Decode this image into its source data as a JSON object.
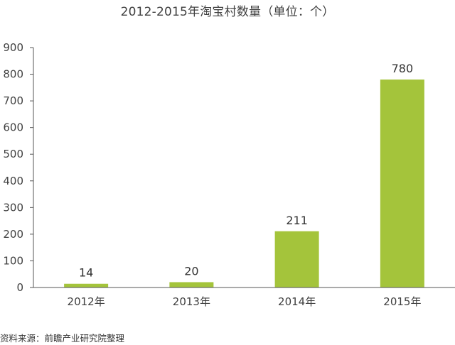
{
  "chart_data": {
    "type": "bar",
    "title": "2012-2015年淘宝村数量（单位：个）",
    "categories": [
      "2012年",
      "2013年",
      "2014年",
      "2015年"
    ],
    "values": [
      14,
      20,
      211,
      780
    ],
    "data_labels": [
      "14",
      "20",
      "211",
      "780"
    ],
    "xlabel": "",
    "ylabel": "",
    "ylim": [
      0,
      900
    ],
    "yticks": [
      0,
      100,
      200,
      300,
      400,
      500,
      600,
      700,
      800,
      900
    ],
    "grid": false,
    "legend": "none",
    "bar_color": "#a4c43b",
    "axis_color": "#555555"
  },
  "source_note": "资料来源：前瞻产业研究院整理"
}
